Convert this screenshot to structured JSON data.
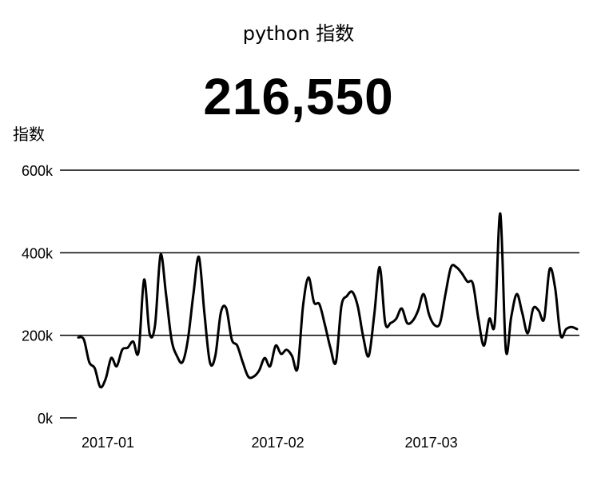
{
  "header": {
    "title": "python 指数",
    "value": "216,550"
  },
  "chart_data": {
    "type": "line",
    "title": "python 指数",
    "ylabel": "指数",
    "xlabel": "",
    "ylim": [
      0,
      600000
    ],
    "yticks": [
      0,
      200000,
      400000,
      600000
    ],
    "ytick_labels": [
      "0k",
      "200k",
      "400k",
      "600k"
    ],
    "xticks": [
      "2017-01-01",
      "2017-02-01",
      "2017-03-01"
    ],
    "xtick_labels": [
      "2017-01",
      "2017-02",
      "2017-03"
    ],
    "grid": true,
    "line_color": "#000000",
    "series": [
      {
        "x": [
          "2017-01-01",
          "2017-01-02",
          "2017-01-03",
          "2017-01-04",
          "2017-01-05",
          "2017-01-06",
          "2017-01-07",
          "2017-01-08",
          "2017-01-09",
          "2017-01-10",
          "2017-01-11",
          "2017-01-12",
          "2017-01-13",
          "2017-01-14",
          "2017-01-15",
          "2017-01-16",
          "2017-01-17",
          "2017-01-18",
          "2017-01-19",
          "2017-01-20",
          "2017-01-21",
          "2017-01-22",
          "2017-01-23",
          "2017-01-24",
          "2017-01-25",
          "2017-01-26",
          "2017-01-27",
          "2017-01-28",
          "2017-01-29",
          "2017-01-30",
          "2017-01-31",
          "2017-02-01",
          "2017-02-02",
          "2017-02-03",
          "2017-02-04",
          "2017-02-05",
          "2017-02-06",
          "2017-02-07",
          "2017-02-08",
          "2017-02-09",
          "2017-02-10",
          "2017-02-11",
          "2017-02-12",
          "2017-02-13",
          "2017-02-14",
          "2017-02-15",
          "2017-02-16",
          "2017-02-17",
          "2017-02-18",
          "2017-02-19",
          "2017-02-20",
          "2017-02-21",
          "2017-02-22",
          "2017-02-23",
          "2017-02-24",
          "2017-02-25",
          "2017-02-26",
          "2017-02-27",
          "2017-02-28",
          "2017-03-01",
          "2017-03-02",
          "2017-03-03",
          "2017-03-04",
          "2017-03-05",
          "2017-03-06",
          "2017-03-07",
          "2017-03-08",
          "2017-03-09",
          "2017-03-10",
          "2017-03-11",
          "2017-03-12",
          "2017-03-13",
          "2017-03-14",
          "2017-03-15",
          "2017-03-16",
          "2017-03-17",
          "2017-03-18",
          "2017-03-19",
          "2017-03-20",
          "2017-03-21",
          "2017-03-22",
          "2017-03-23",
          "2017-03-24",
          "2017-03-25",
          "2017-03-26",
          "2017-03-27",
          "2017-03-28",
          "2017-03-29",
          "2017-03-30",
          "2017-03-31",
          "2017-04-01",
          "2017-04-02"
        ],
        "y": [
          195000,
          190000,
          135000,
          120000,
          75000,
          95000,
          145000,
          125000,
          165000,
          170000,
          185000,
          160000,
          335000,
          205000,
          225000,
          395000,
          300000,
          190000,
          150000,
          135000,
          190000,
          300000,
          390000,
          255000,
          135000,
          150000,
          255000,
          265000,
          190000,
          175000,
          135000,
          100000,
          100000,
          115000,
          145000,
          125000,
          175000,
          155000,
          165000,
          150000,
          120000,
          270000,
          340000,
          280000,
          275000,
          225000,
          170000,
          135000,
          270000,
          295000,
          305000,
          270000,
          195000,
          150000,
          250000,
          365000,
          230000,
          230000,
          240000,
          265000,
          230000,
          235000,
          260000,
          300000,
          250000,
          225000,
          230000,
          300000,
          365000,
          365000,
          350000,
          330000,
          325000,
          240000,
          175000,
          240000,
          230000,
          495000,
          165000,
          245000,
          300000,
          255000,
          205000,
          265000,
          260000,
          240000,
          360000,
          315000,
          200000,
          215000,
          220000,
          215000
        ]
      }
    ]
  }
}
